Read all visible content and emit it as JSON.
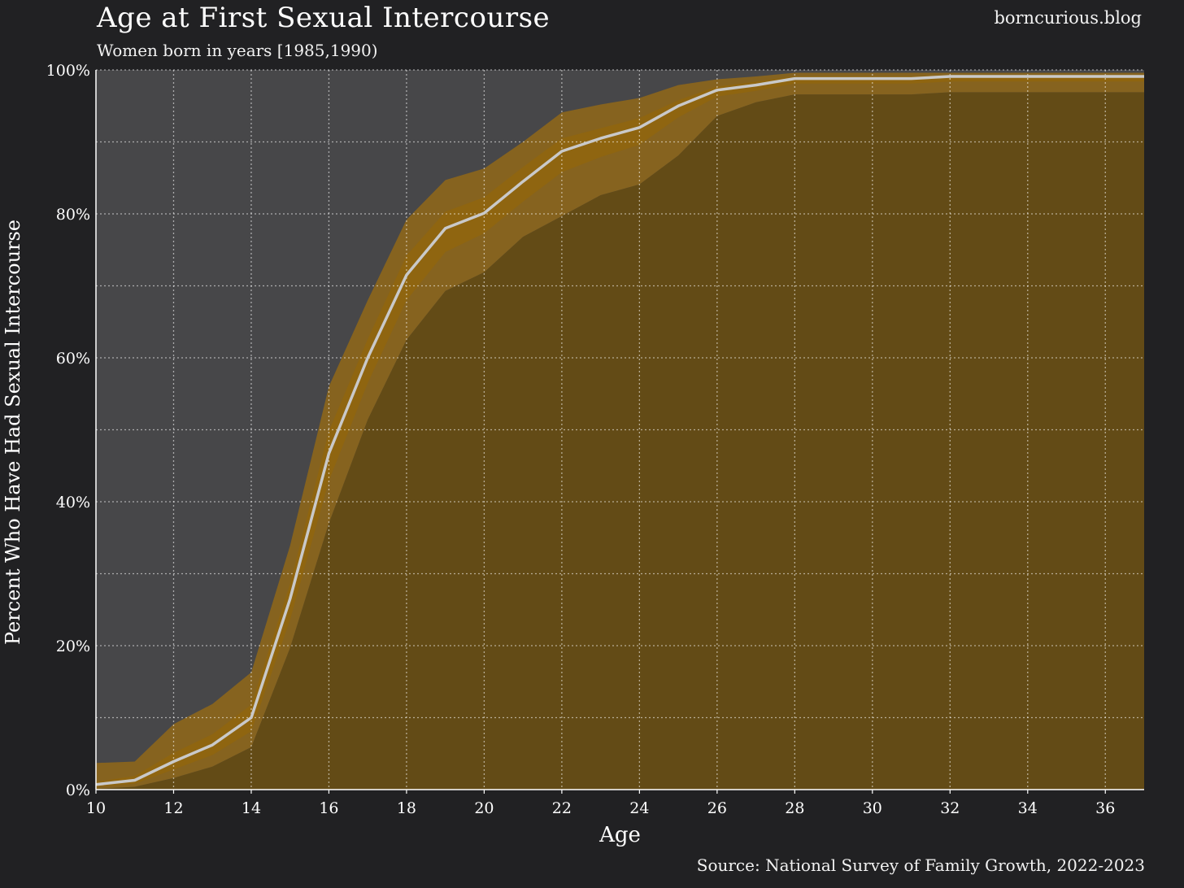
{
  "header": {
    "title": "Age at First Sexual Intercourse",
    "subtitle": "Women born in years [1985,1990)",
    "brand": "borncurious.blog"
  },
  "footer": {
    "source": "Source: National Survey of Family Growth, 2022-2023"
  },
  "colors": {
    "background": "#212123",
    "plot_background": "#474749",
    "outer_band": "#86631f",
    "inner_band": "#8f6510",
    "below_area": "#634b16",
    "line": "#c9c9c9",
    "grid": "#ffffff"
  },
  "chart_data": {
    "type": "area",
    "title": "Age at First Sexual Intercourse",
    "subtitle": "Women born in years [1985,1990)",
    "xlabel": "Age",
    "ylabel": "Percent Who Have Had Sexual Intercourse",
    "xlim": [
      10,
      37
    ],
    "ylim": [
      0,
      100
    ],
    "x_ticks": [
      10,
      12,
      14,
      16,
      18,
      20,
      22,
      24,
      26,
      28,
      30,
      32,
      34,
      36
    ],
    "x_tick_labels": [
      "10",
      "12",
      "14",
      "16",
      "18",
      "20",
      "22",
      "24",
      "26",
      "28",
      "30",
      "32",
      "34",
      "36"
    ],
    "y_ticks": [
      0,
      20,
      40,
      60,
      80,
      100
    ],
    "y_tick_labels": [
      "0%",
      "20%",
      "40%",
      "60%",
      "80%",
      "100%"
    ],
    "y_minor_grid": [
      10,
      30,
      50,
      70,
      90
    ],
    "grid": true,
    "x": [
      10,
      11,
      12,
      13,
      14,
      15,
      16,
      17,
      18,
      19,
      20,
      21,
      22,
      23,
      24,
      25,
      26,
      27,
      28,
      29,
      30,
      31,
      32,
      33,
      34,
      35,
      36,
      37
    ],
    "series": [
      {
        "role": "estimate",
        "values": [
          0.7,
          1.3,
          3.9,
          6.2,
          10.0,
          26.5,
          46.7,
          60.0,
          71.5,
          78.0,
          80.1,
          84.5,
          88.7,
          90.5,
          92.0,
          95.0,
          97.2,
          97.9,
          98.8,
          98.8,
          98.8,
          98.8,
          99.1,
          99.1,
          99.1,
          99.1,
          99.1,
          99.1
        ]
      },
      {
        "role": "outer_upper",
        "values": [
          3.7,
          3.9,
          9.1,
          11.9,
          16.3,
          33.9,
          56.0,
          68.0,
          79.2,
          84.7,
          86.3,
          90.0,
          94.1,
          95.2,
          96.1,
          97.9,
          98.7,
          99.1,
          99.6,
          99.6,
          99.6,
          99.6,
          99.6,
          99.6,
          99.6,
          99.6,
          99.6,
          99.6
        ]
      },
      {
        "role": "outer_lower",
        "values": [
          0.1,
          0.4,
          1.6,
          3.2,
          5.9,
          19.7,
          37.0,
          51.4,
          62.5,
          69.3,
          71.9,
          76.8,
          79.7,
          82.6,
          84.1,
          88.1,
          93.6,
          95.5,
          96.6,
          96.6,
          96.6,
          96.6,
          96.9,
          96.9,
          96.9,
          96.9,
          96.9,
          96.9
        ]
      },
      {
        "role": "inner_upper",
        "values": [
          1.1,
          1.9,
          5.1,
          7.7,
          11.8,
          28.6,
          49.8,
          62.6,
          74.2,
          80.3,
          82.3,
          86.5,
          90.5,
          91.9,
          93.3,
          95.8,
          97.7,
          98.4,
          99.1,
          99.1,
          99.1,
          99.1,
          99.3,
          99.3,
          99.3,
          99.3,
          99.3,
          99.3
        ]
      },
      {
        "role": "inner_lower",
        "values": [
          0.4,
          0.8,
          2.8,
          4.8,
          8.1,
          23.6,
          42.9,
          56.5,
          68.0,
          74.7,
          77.3,
          81.7,
          85.8,
          87.9,
          89.6,
          93.4,
          96.3,
          97.1,
          98.1,
          98.1,
          98.1,
          98.1,
          98.4,
          98.4,
          98.4,
          98.4,
          98.4,
          98.4
        ]
      }
    ]
  }
}
